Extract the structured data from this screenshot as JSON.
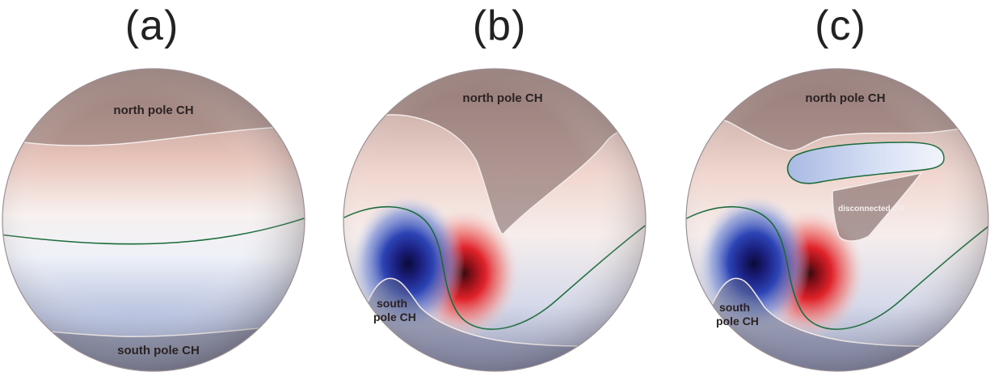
{
  "panels": [
    {
      "id": "a",
      "title": "(a)",
      "labels": {
        "north": "north pole CH",
        "south": "south pole CH"
      }
    },
    {
      "id": "b",
      "title": "(b)",
      "labels": {
        "north": "north pole CH",
        "south_line1": "south",
        "south_line2": "pole CH"
      }
    },
    {
      "id": "c",
      "title": "(c)",
      "labels": {
        "north": "north pole CH",
        "south_line1": "south",
        "south_line2": "pole CH",
        "disconnected": "disconnected CH"
      }
    }
  ],
  "colors": {
    "positive": "#e32626",
    "negative": "#1a2a8e",
    "neutral_line": "#1a6b3a",
    "coronal_hole": "#7a6663"
  }
}
